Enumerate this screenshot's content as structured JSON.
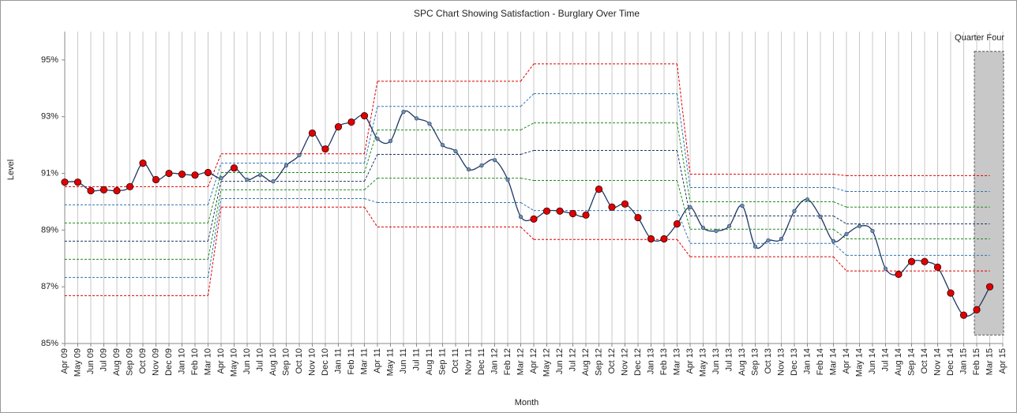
{
  "chart_data": {
    "type": "line",
    "title": "SPC Chart Showing Satisfaction - Burglary Over Time",
    "x_label": "Month",
    "y_label": "Level",
    "categories": [
      "Apr 09",
      "May 09",
      "Jun 09",
      "Jul 09",
      "Aug 09",
      "Sep 09",
      "Oct 09",
      "Nov 09",
      "Dec 09",
      "Jan 10",
      "Feb 10",
      "Mar 10",
      "Apr 10",
      "May 10",
      "Jun 10",
      "Jul 10",
      "Aug 10",
      "Sep 10",
      "Oct 10",
      "Nov 10",
      "Dec 10",
      "Jan 11",
      "Feb 11",
      "Mar 11",
      "Apr 11",
      "May 11",
      "Jun 11",
      "Jul 11",
      "Aug 11",
      "Sep 11",
      "Oct 11",
      "Nov 11",
      "Dec 11",
      "Jan 12",
      "Feb 12",
      "Mar 12",
      "Apr 12",
      "May 12",
      "Jun 12",
      "Jul 12",
      "Aug 12",
      "Sep 12",
      "Oct 12",
      "Nov 12",
      "Dec 12",
      "Jan 13",
      "Feb 13",
      "Mar 13",
      "Apr 13",
      "May 13",
      "Jun 13",
      "Jul 13",
      "Aug 13",
      "Sep 13",
      "Oct 13",
      "Nov 13",
      "Dec 13",
      "Jan 14",
      "Feb 14",
      "Mar 14",
      "Apr 14",
      "May 14",
      "Jun 14",
      "Jul 14",
      "Aug 14",
      "Sep 14",
      "Oct 14",
      "Nov 14",
      "Dec 14",
      "Jan 15",
      "Feb 15",
      "Mar 15",
      "Apr 15"
    ],
    "values": [
      90.69,
      90.69,
      90.39,
      90.42,
      90.39,
      90.53,
      91.36,
      90.78,
      91.0,
      90.97,
      90.94,
      91.03,
      90.83,
      91.19,
      90.78,
      90.94,
      90.72,
      91.28,
      91.64,
      92.42,
      91.86,
      92.64,
      92.81,
      93.03,
      92.22,
      92.14,
      93.17,
      92.94,
      92.75,
      92.0,
      91.78,
      91.14,
      91.28,
      91.47,
      90.78,
      89.47,
      89.39,
      89.67,
      89.67,
      89.58,
      89.53,
      90.44,
      89.81,
      89.92,
      89.44,
      88.69,
      88.69,
      89.22,
      89.81,
      89.08,
      88.97,
      89.14,
      89.86,
      88.42,
      88.64,
      88.69,
      89.67,
      90.08,
      89.47,
      88.61,
      88.86,
      89.14,
      88.97,
      87.64,
      87.44,
      87.89,
      87.89,
      87.69,
      86.78,
      86.0,
      86.19,
      87.0,
      null
    ],
    "color": "#1f3864",
    "marker_colors": [
      "#e00000",
      "#e00000",
      "#e00000",
      "#e00000",
      "#e00000",
      "#e00000",
      "#e00000",
      "#e00000",
      "#e00000",
      "#e00000",
      "#e00000",
      "#e00000",
      "#1f3864",
      "#e00000",
      "#1f3864",
      "#1f3864",
      "#1f3864",
      "#1f3864",
      "#1f3864",
      "#e00000",
      "#e00000",
      "#e00000",
      "#e00000",
      "#e00000",
      "#1f3864",
      "#1f3864",
      "#1f3864",
      "#1f3864",
      "#1f3864",
      "#1f3864",
      "#1f3864",
      "#1f3864",
      "#1f3864",
      "#1f3864",
      "#1f3864",
      "#1f3864",
      "#e00000",
      "#e00000",
      "#e00000",
      "#e00000",
      "#e00000",
      "#e00000",
      "#e00000",
      "#e00000",
      "#e00000",
      "#e00000",
      "#e00000",
      "#e00000",
      "#1f3864",
      "#1f3864",
      "#1f3864",
      "#1f3864",
      "#1f3864",
      "#1f3864",
      "#1f3864",
      "#1f3864",
      "#1f3864",
      "#1f3864",
      "#1f3864",
      "#1f3864",
      "#1f3864",
      "#1f3864",
      "#1f3864",
      "#1f3864",
      "#e00000",
      "#e00000",
      "#e00000",
      "#e00000",
      "#e00000",
      "#e00000",
      "#e00000",
      "#e00000",
      null
    ],
    "limits": {
      "colors": [
        "#e00000",
        "#2e75b6",
        "#1e8c1e",
        "#1f3864",
        "#1e8c1e",
        "#2e75b6",
        "#e00000"
      ],
      "phases": [
        {
          "start": "Apr 09",
          "end": "Mar 10",
          "levels": [
            90.53,
            89.89,
            89.25,
            88.61,
            87.97,
            87.33,
            86.69
          ]
        },
        {
          "start": "Apr 10",
          "end": "Mar 11",
          "levels": [
            91.69,
            91.36,
            91.03,
            90.72,
            90.42,
            90.11,
            89.81
          ]
        },
        {
          "start": "Apr 11",
          "end": "Mar 12",
          "levels": [
            94.25,
            93.36,
            92.53,
            91.67,
            90.83,
            89.97,
            89.11
          ]
        },
        {
          "start": "Apr 12",
          "end": "Mar 13",
          "levels": [
            94.86,
            93.81,
            92.78,
            91.81,
            90.75,
            89.69,
            88.67
          ]
        },
        {
          "start": "Apr 13",
          "end": "Mar 14",
          "levels": [
            90.97,
            90.5,
            90.0,
            89.5,
            89.03,
            88.53,
            88.06
          ]
        },
        {
          "start": "Apr 14",
          "end": "Mar 15",
          "levels": [
            90.92,
            90.36,
            89.81,
            89.22,
            88.69,
            88.11,
            87.56
          ]
        }
      ]
    },
    "highlight": {
      "label": "Quarter Four",
      "start": "Feb 15",
      "end": "Apr 15",
      "color": "#c8c8c8"
    },
    "ylim": [
      85,
      96
    ],
    "yticks": [
      {
        "value": 85,
        "label": "85%"
      },
      {
        "value": 87,
        "label": "87%"
      },
      {
        "value": 89,
        "label": "89%"
      },
      {
        "value": 91,
        "label": "91%"
      },
      {
        "value": 93,
        "label": "93%"
      },
      {
        "value": 95,
        "label": "95%"
      }
    ],
    "grid": "x"
  }
}
